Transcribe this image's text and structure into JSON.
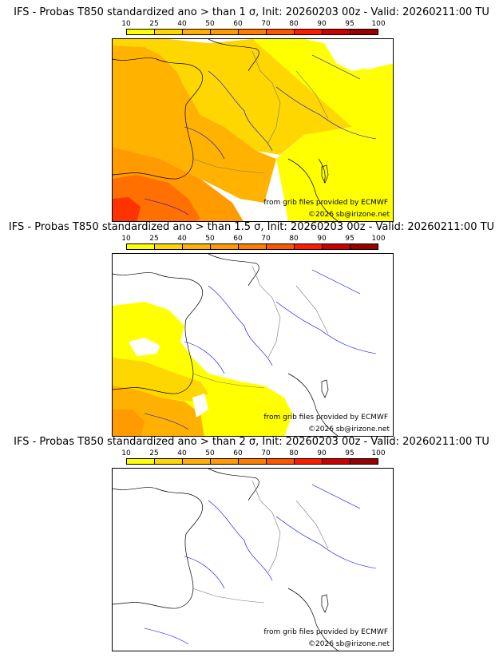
{
  "panels": [
    {
      "title": "IFS - Probas T850  standardized ano > than 1 σ, Init: 20260203 00z - Valid: 20260211:00 TU",
      "sigma_threshold": 1,
      "credit": "from grib files provided by ECMWF",
      "copyright": "©2026 sb@irizone.net"
    },
    {
      "title": "IFS - Probas T850  standardized ano > than 1.5 σ, Init: 20260203 00z - Valid: 20260211:00 TU",
      "sigma_threshold": 1.5,
      "credit": "from grib files provided by ECMWF",
      "copyright": "©2026 sb@irizone.net"
    },
    {
      "title": "IFS - Probas T850  standardized ano > than 2 σ, Init: 20260203 00z - Valid: 20260211:00 TU",
      "sigma_threshold": 2,
      "credit": "from grib files provided by ECMWF",
      "copyright": "©2026 sb@irizone.net"
    }
  ],
  "color_scale": {
    "ticks": [
      "10",
      "25",
      "40",
      "50",
      "60",
      "70",
      "80",
      "90",
      "95",
      "100"
    ],
    "colors": [
      "#ffff00",
      "#ffd700",
      "#ffb000",
      "#ff9a00",
      "#ff7e00",
      "#ff5500",
      "#ff1a00",
      "#cc0000",
      "#990000",
      "#660000"
    ]
  },
  "map_colors": {
    "coast": "#000000",
    "rivers": "#0000ff",
    "borders": "#a0a0a0"
  }
}
